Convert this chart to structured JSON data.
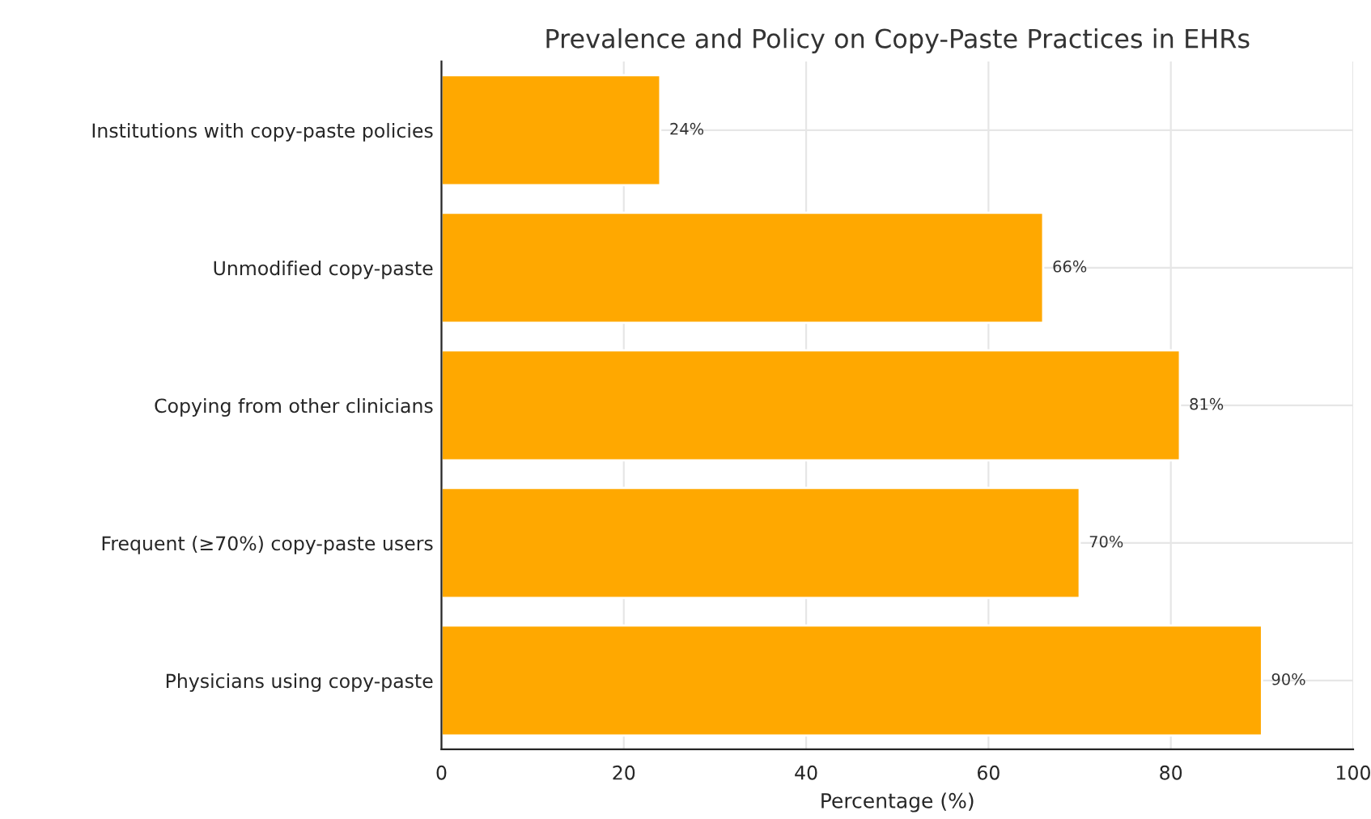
{
  "chart_data": {
    "type": "bar",
    "orientation": "horizontal",
    "title": "Prevalence and Policy on Copy-Paste Practices in EHRs",
    "xlabel": "Percentage (%)",
    "categories": [
      "Institutions with copy-paste policies",
      "Unmodified copy-paste",
      "Copying from other clinicians",
      "Frequent (≥70%) copy-paste users",
      "Physicians using copy-paste"
    ],
    "values": [
      24,
      66,
      81,
      70,
      90
    ],
    "value_labels": [
      "24%",
      "66%",
      "81%",
      "70%",
      "90%"
    ],
    "color": "#ffa800",
    "xlim": [
      0,
      100
    ],
    "xticks": [
      0,
      20,
      40,
      60,
      80,
      100
    ],
    "grid": true
  }
}
